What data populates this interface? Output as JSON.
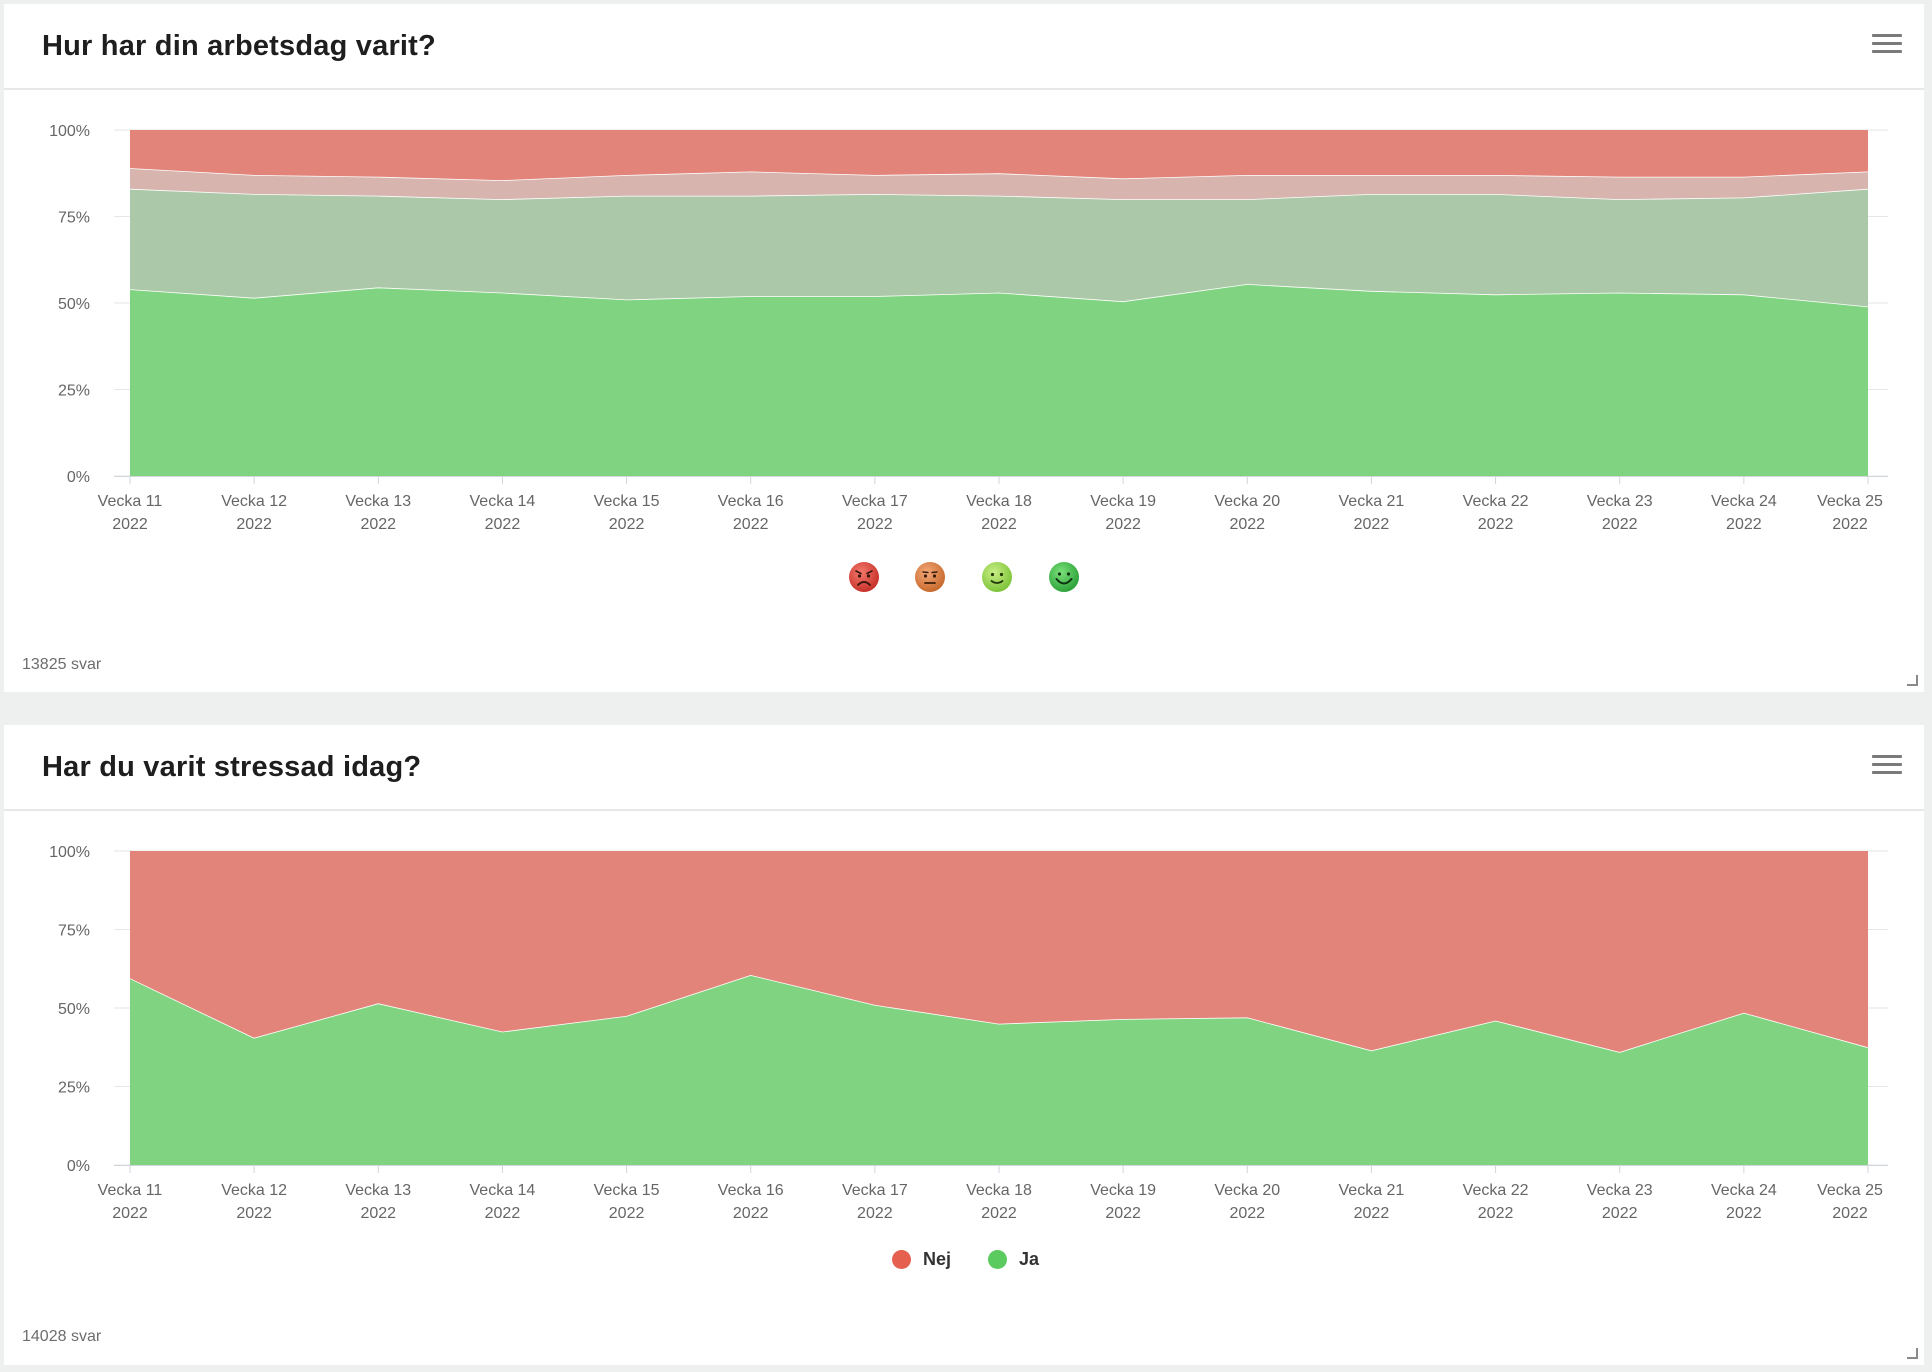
{
  "colors": {
    "red": "#e3847a",
    "pink": "#d7b4ae",
    "sage": "#abc9a8",
    "green": "#80d481",
    "legend_red": "#e5604f",
    "legend_green": "#5ccb5f"
  },
  "charts": [
    {
      "title": "Hur har din arbetsdag varit?",
      "footer": "13825 svar",
      "legend_icons": [
        "angry-face-icon",
        "neutral-face-icon",
        "slight-smile-icon",
        "big-smile-icon"
      ]
    },
    {
      "title": "Har du varit stressad idag?",
      "footer": "14028 svar",
      "legend": [
        {
          "label": "Nej",
          "color": "#e5604f"
        },
        {
          "label": "Ja",
          "color": "#5ccb5f"
        }
      ]
    }
  ],
  "chart_data": [
    {
      "type": "area",
      "stacking": "percent",
      "title": "Hur har din arbetsdag varit?",
      "categories": [
        "Vecka 11",
        "Vecka 12",
        "Vecka 13",
        "Vecka 14",
        "Vecka 15",
        "Vecka 16",
        "Vecka 17",
        "Vecka 18",
        "Vecka 19",
        "Vecka 20",
        "Vecka 21",
        "Vecka 22",
        "Vecka 23",
        "Vecka 24",
        "Vecka 25"
      ],
      "category_sublabel": "2022",
      "y_ticks": [
        "0%",
        "25%",
        "50%",
        "75%",
        "100%"
      ],
      "ylim": [
        0,
        100
      ],
      "grid": true,
      "cumulative_boundaries": {
        "green_top": [
          54,
          51.5,
          54.5,
          53,
          51,
          52,
          52,
          53,
          50.5,
          55.5,
          53.5,
          52.5,
          53,
          52.5,
          49
        ],
        "sage_top": [
          83,
          81.5,
          81,
          80,
          81,
          81,
          81.5,
          81,
          80,
          80,
          81.5,
          81.5,
          80,
          80.5,
          83
        ],
        "pink_top": [
          89,
          87,
          86.5,
          85.5,
          87,
          88,
          87,
          87.5,
          86,
          87,
          87,
          87,
          86.5,
          86.5,
          88
        ]
      },
      "series": [
        {
          "icon": "big-smile-icon",
          "color": "#80d481",
          "values": [
            54,
            51.5,
            54.5,
            53,
            51,
            52,
            52,
            53,
            50.5,
            55.5,
            53.5,
            52.5,
            53,
            52.5,
            49
          ]
        },
        {
          "icon": "slight-smile-icon",
          "color": "#abc9a8",
          "values": [
            29,
            30,
            26.5,
            27,
            30,
            29,
            29.5,
            28,
            29.5,
            24.5,
            28,
            29,
            27,
            28,
            34
          ]
        },
        {
          "icon": "neutral-face-icon",
          "color": "#d7b4ae",
          "values": [
            6,
            5.5,
            5.5,
            5.5,
            6,
            7,
            5.5,
            6.5,
            6,
            7,
            5.5,
            5.5,
            6.5,
            6,
            5
          ]
        },
        {
          "icon": "angry-face-icon",
          "color": "#e3847a",
          "values": [
            11,
            13,
            13.5,
            14.5,
            13,
            12,
            13,
            12.5,
            14,
            13,
            13,
            13,
            13.5,
            13.5,
            12
          ]
        }
      ]
    },
    {
      "type": "area",
      "stacking": "percent",
      "title": "Har du varit stressad idag?",
      "categories": [
        "Vecka 11",
        "Vecka 12",
        "Vecka 13",
        "Vecka 14",
        "Vecka 15",
        "Vecka 16",
        "Vecka 17",
        "Vecka 18",
        "Vecka 19",
        "Vecka 20",
        "Vecka 21",
        "Vecka 22",
        "Vecka 23",
        "Vecka 24",
        "Vecka 25"
      ],
      "category_sublabel": "2022",
      "y_ticks": [
        "0%",
        "25%",
        "50%",
        "75%",
        "100%"
      ],
      "ylim": [
        0,
        100
      ],
      "grid": true,
      "legend_position": "bottom-center",
      "series": [
        {
          "name": "Ja",
          "color": "#80d481",
          "values": [
            59.5,
            40.5,
            51.5,
            42.5,
            47.5,
            60.5,
            51,
            45,
            46.5,
            47,
            36.5,
            46,
            36,
            48.5,
            37.5
          ]
        },
        {
          "name": "Nej",
          "color": "#e3847a",
          "values": [
            40.5,
            59.5,
            48.5,
            57.5,
            52.5,
            39.5,
            49,
            55,
            53.5,
            53,
            63.5,
            54,
            64,
            51.5,
            62.5
          ]
        }
      ]
    }
  ]
}
